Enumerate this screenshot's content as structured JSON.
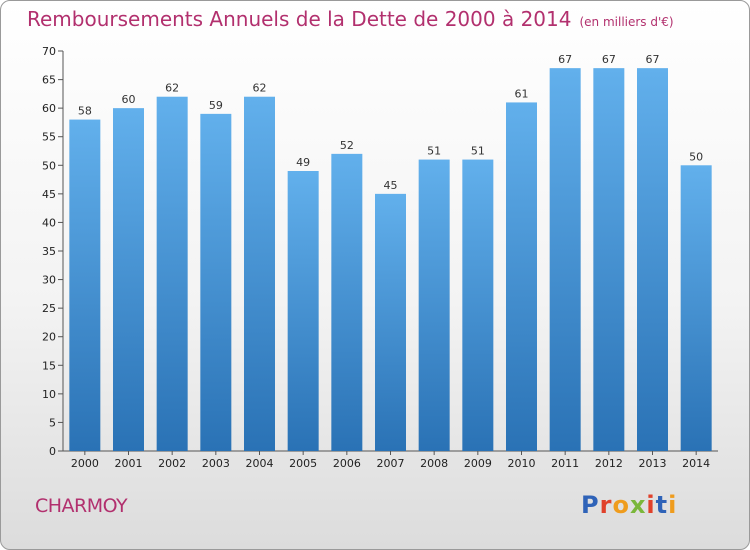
{
  "header": {
    "title": "Remboursements Annuels de la Dette de 2000 à 2014",
    "unit": "(en milliers d'€)"
  },
  "footer": {
    "commune": "CHARMOY",
    "logo": "Proxiti"
  },
  "colors": {
    "title": "#b2306e",
    "bar_top": "#62b0ec",
    "bar_bottom": "#2a72b5",
    "logo_letters": [
      "#2f63b8",
      "#e0412b",
      "#ef9c1d",
      "#7ab73a",
      "#e0412b",
      "#2f63b8",
      "#ef9c1d"
    ]
  },
  "chart_data": {
    "type": "bar",
    "title": "Remboursements Annuels de la Dette de 2000 à 2014",
    "xlabel": "",
    "ylabel": "",
    "ylim": [
      0,
      70
    ],
    "yticks": [
      0,
      5,
      10,
      15,
      20,
      25,
      30,
      35,
      40,
      45,
      50,
      55,
      60,
      65,
      70
    ],
    "grid": false,
    "categories": [
      "2000",
      "2001",
      "2002",
      "2003",
      "2004",
      "2005",
      "2006",
      "2007",
      "2008",
      "2009",
      "2010",
      "2011",
      "2012",
      "2013",
      "2014"
    ],
    "values": [
      58,
      60,
      62,
      59,
      62,
      49,
      52,
      45,
      51,
      51,
      61,
      67,
      67,
      67,
      50
    ]
  }
}
